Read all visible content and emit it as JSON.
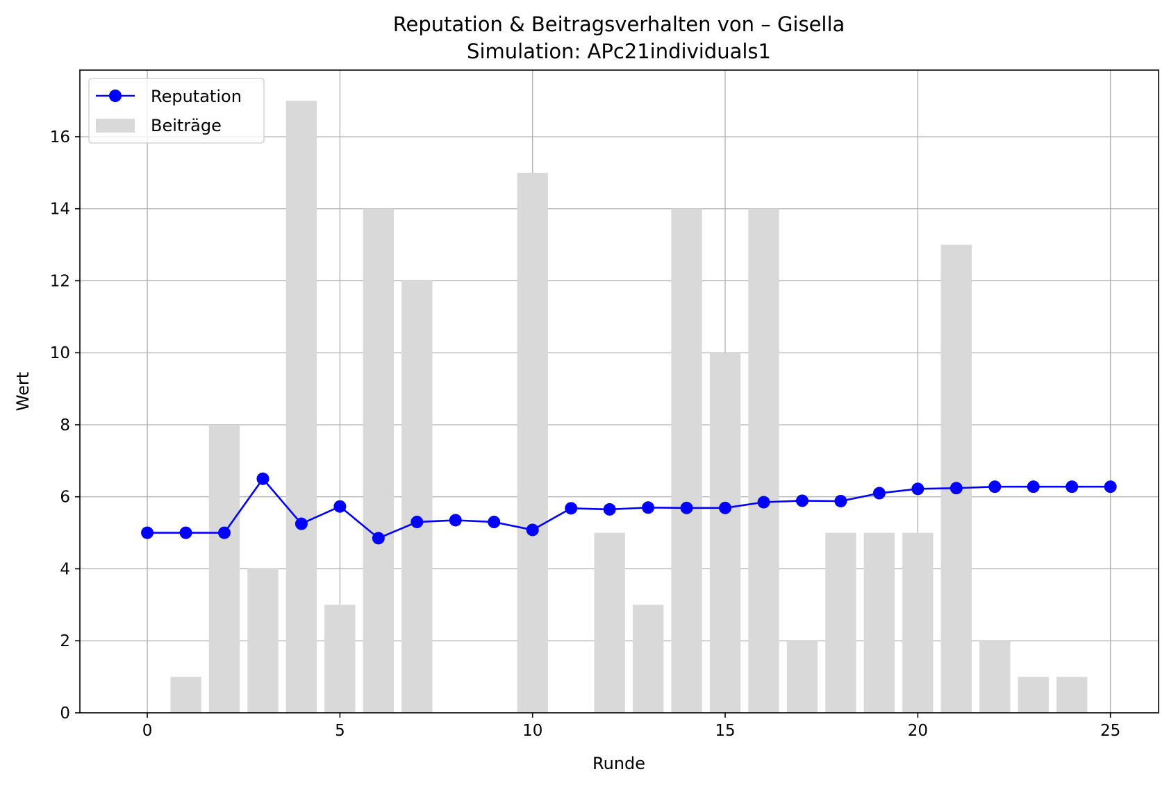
{
  "chart_data": {
    "type": "bar",
    "title": "Reputation & Beitragsverhalten von – Gisella",
    "subtitle": "Simulation: APc21individuals1",
    "xlabel": "Runde",
    "ylabel": "Wert",
    "xlim": [
      -1.75,
      26.25
    ],
    "ylim": [
      0,
      17.85
    ],
    "xticks": [
      0,
      5,
      10,
      15,
      20,
      25
    ],
    "yticks": [
      0,
      2,
      4,
      6,
      8,
      10,
      12,
      14,
      16
    ],
    "grid": true,
    "legend_position": "top-left",
    "x": [
      0,
      1,
      2,
      3,
      4,
      5,
      6,
      7,
      8,
      9,
      10,
      11,
      12,
      13,
      14,
      15,
      16,
      17,
      18,
      19,
      20,
      21,
      22,
      23,
      24,
      25
    ],
    "series": [
      {
        "name": "Reputation",
        "kind": "line",
        "marker": "circle",
        "color": "#0000ff",
        "values": [
          5.0,
          5.0,
          5.0,
          6.5,
          5.25,
          5.73,
          4.85,
          5.3,
          5.35,
          5.3,
          5.08,
          5.68,
          5.65,
          5.7,
          5.69,
          5.69,
          5.85,
          5.89,
          5.88,
          6.1,
          6.22,
          6.24,
          6.28,
          6.28,
          6.28,
          6.28
        ]
      },
      {
        "name": "Beiträge",
        "kind": "bar",
        "color": "#d9d9d9",
        "values": [
          0,
          1,
          8,
          4,
          17,
          3,
          14,
          12,
          0,
          0,
          15,
          0,
          5,
          3,
          14,
          10,
          14,
          2,
          5,
          5,
          5,
          13,
          2,
          1,
          1,
          0
        ]
      }
    ]
  }
}
